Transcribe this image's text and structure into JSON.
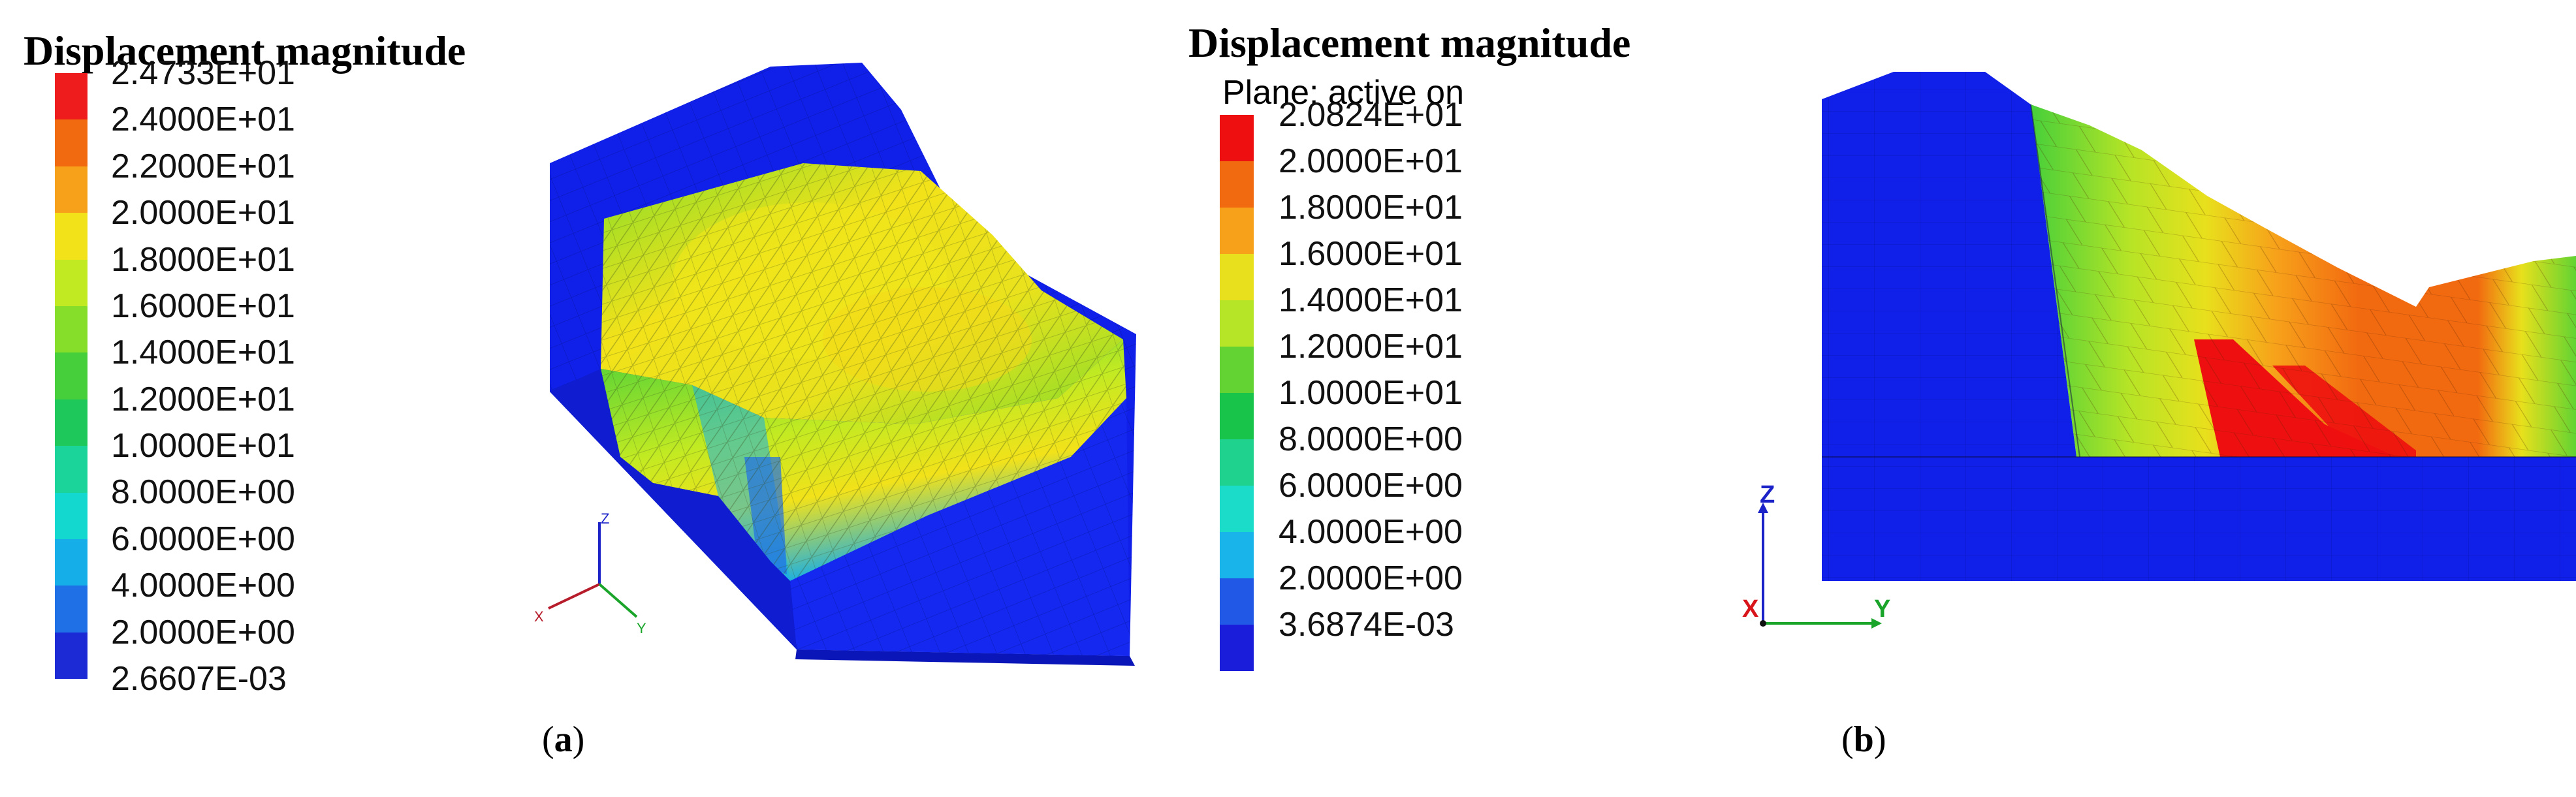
{
  "panel_a": {
    "legend": {
      "title": "Displacement magnitude",
      "labels": [
        "2.4733E+01",
        "2.4000E+01",
        "2.2000E+01",
        "2.0000E+01",
        "1.8000E+01",
        "1.6000E+01",
        "1.4000E+01",
        "1.2000E+01",
        "1.0000E+01",
        "8.0000E+00",
        "6.0000E+00",
        "4.0000E+00",
        "2.0000E+00",
        "2.6607E-03"
      ],
      "colors": [
        "#ee1c1c",
        "#f26a10",
        "#f7a11a",
        "#f2e21a",
        "#c2ea22",
        "#86dd2a",
        "#46cf3a",
        "#1ec85a",
        "#1bd49a",
        "#13d8cf",
        "#15aee8",
        "#1f6fe6",
        "#1c2ad6"
      ]
    },
    "axes": {
      "z": "Z",
      "x": "X",
      "y": "Y"
    },
    "caption": {
      "open": "(",
      "letter": "a",
      "close": ")"
    }
  },
  "panel_b": {
    "legend": {
      "title": "Displacement magnitude",
      "subtitle": "Plane: active on",
      "labels": [
        "2.0824E+01",
        "2.0000E+01",
        "1.8000E+01",
        "1.6000E+01",
        "1.4000E+01",
        "1.2000E+01",
        "1.0000E+01",
        "8.0000E+00",
        "6.0000E+00",
        "4.0000E+00",
        "2.0000E+00",
        "3.6874E-03"
      ],
      "colors": [
        "#ee1010",
        "#f26a10",
        "#f7a11a",
        "#e8e01c",
        "#b6e426",
        "#62d332",
        "#19c44a",
        "#1fd38e",
        "#1bdcc8",
        "#18b4ea",
        "#2258e6",
        "#1a1edb"
      ]
    },
    "axes": {
      "z": "Z",
      "x": "X",
      "y": "Y"
    },
    "caption": {
      "open": "(",
      "letter": "b",
      "close": ")"
    }
  },
  "colors": {
    "model_blue": "#1020e8",
    "axis_red": "#d8151a",
    "axis_green": "#1aa52a",
    "axis_blue": "#1a22c8"
  }
}
